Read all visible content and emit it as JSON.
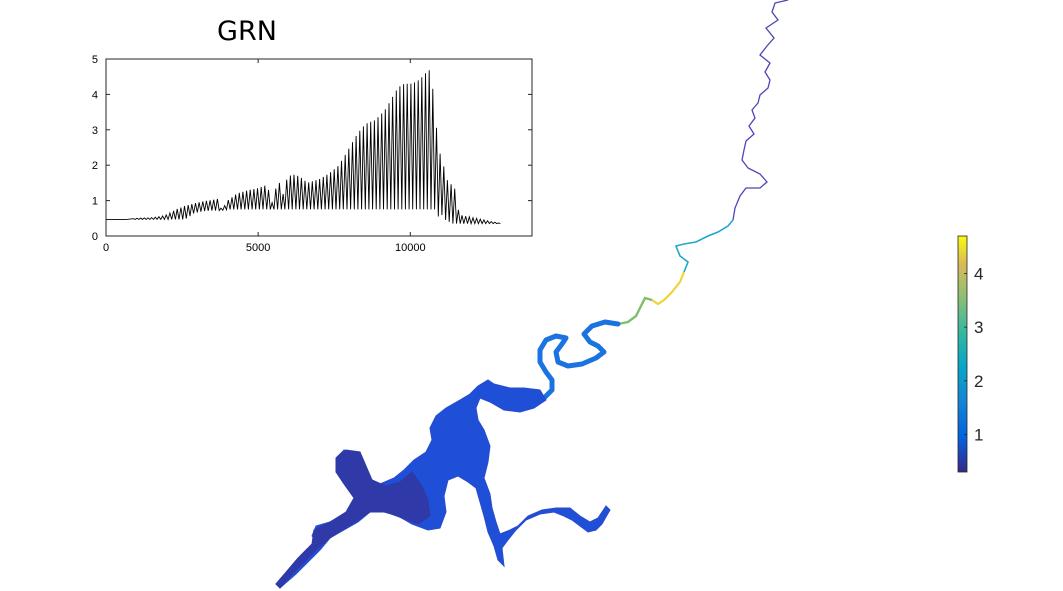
{
  "chart_data": [
    {
      "type": "line",
      "title": "GRN",
      "xlabel": "",
      "ylabel": "",
      "xlim": [
        0,
        14000
      ],
      "ylim": [
        0,
        5
      ],
      "x_ticks": [
        "0",
        "5000",
        "10000"
      ],
      "y_ticks": [
        "0",
        "1",
        "2",
        "3",
        "4",
        "5"
      ],
      "grid": false,
      "series": [
        {
          "color": "#000000",
          "x": [
            0,
            700,
            1000,
            1500,
            1800,
            2000,
            2300,
            2600,
            2900,
            3200,
            3500,
            3700,
            3800,
            4000,
            4300,
            4700,
            5000,
            5300,
            5450,
            5550,
            5700,
            5800,
            5900,
            6100,
            6300,
            6500,
            6600,
            6800,
            7000,
            7300,
            7600,
            7800,
            8000,
            8200,
            8400,
            8600,
            8800,
            9000,
            9200,
            9400,
            9600,
            9800,
            10000,
            10200,
            10400,
            10600,
            10700,
            10800,
            10950,
            11050,
            11200,
            11300,
            11400,
            11500,
            11600,
            13000
          ],
          "envelope_max": [
            0.47,
            0.47,
            0.5,
            0.52,
            0.55,
            0.6,
            0.75,
            0.85,
            0.92,
            0.98,
            1.02,
            1.05,
            0.72,
            1.0,
            1.2,
            1.3,
            1.35,
            1.45,
            0.9,
            1.3,
            1.5,
            1.1,
            1.55,
            1.75,
            1.7,
            1.6,
            1.5,
            1.55,
            1.6,
            1.75,
            1.95,
            2.2,
            2.5,
            2.8,
            3.05,
            3.2,
            3.25,
            3.4,
            3.6,
            3.9,
            4.2,
            4.3,
            4.3,
            4.35,
            4.5,
            4.7,
            4.6,
            3.5,
            2.4,
            2.15,
            1.6,
            1.5,
            1.4,
            1.3,
            0.6,
            0.35
          ],
          "envelope_min": [
            0.47,
            0.47,
            0.47,
            0.47,
            0.47,
            0.47,
            0.47,
            0.47,
            0.65,
            0.7,
            0.72,
            0.72,
            0.72,
            0.75,
            0.75,
            0.75,
            0.75,
            0.75,
            0.75,
            0.75,
            0.75,
            0.75,
            0.75,
            0.75,
            0.75,
            0.75,
            0.75,
            0.75,
            0.75,
            0.75,
            0.75,
            0.75,
            0.75,
            0.75,
            0.75,
            0.75,
            0.75,
            0.75,
            0.75,
            0.75,
            0.75,
            0.75,
            0.75,
            0.75,
            0.75,
            0.75,
            0.75,
            0.75,
            0.5,
            0.6,
            0.4,
            0.4,
            0.35,
            0.35,
            0.35,
            0.35
          ]
        }
      ]
    },
    {
      "type": "heatmap",
      "colorbar": {
        "colormap": "parula",
        "clim": [
          0.3,
          4.7
        ],
        "ticks": [
          "1",
          "2",
          "3",
          "4"
        ]
      }
    }
  ]
}
